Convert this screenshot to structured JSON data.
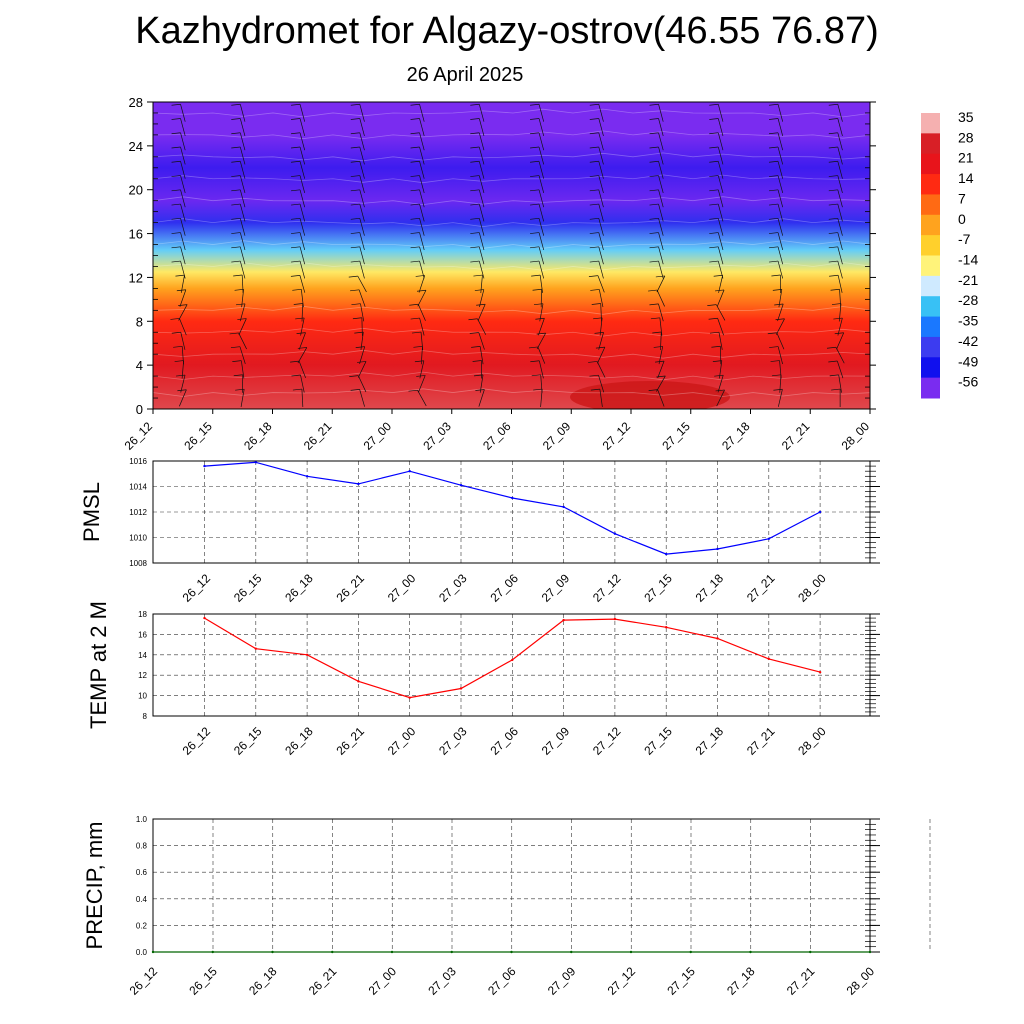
{
  "header": {
    "title": "Kazhydromet for Algazy-ostrov(46.55 76.87)",
    "subtitle": "26 April 2025"
  },
  "chart_data": [
    {
      "type": "heatmap",
      "title": "",
      "xlabel": "",
      "ylabel": "",
      "x_ticks": [
        "26_12",
        "26_15",
        "26_18",
        "26_21",
        "27_00",
        "27_03",
        "27_06",
        "27_09",
        "27_12",
        "27_15",
        "27_18",
        "27_21",
        "28_00"
      ],
      "y_ticks": [
        0,
        4,
        8,
        12,
        16,
        20,
        24,
        28
      ],
      "ylim": [
        0,
        28
      ],
      "colorbar_labels": [
        "35",
        "28",
        "21",
        "14",
        "7",
        "0",
        "-7",
        "-14",
        "-21",
        "-28",
        "-35",
        "-42",
        "-49",
        "-56"
      ],
      "colorbar_colors": [
        "#f5b0b0",
        "#d81f26",
        "#e8141b",
        "#ff2a12",
        "#ff6a14",
        "#ffa31e",
        "#ffd02c",
        "#fff37a",
        "#cfeaff",
        "#38c1f5",
        "#1a78ff",
        "#3c3cf0",
        "#1010ee",
        "#7a2cf0"
      ],
      "temperature_profile": [
        {
          "level": 0,
          "value": 30
        },
        {
          "level": 4,
          "value": 24
        },
        {
          "level": 8,
          "value": 14
        },
        {
          "level": 11,
          "value": 0
        },
        {
          "level": 12.5,
          "value": -12
        },
        {
          "level": 14.5,
          "value": -26
        },
        {
          "level": 17,
          "value": -44
        },
        {
          "level": 19,
          "value": -55
        },
        {
          "level": 22,
          "value": -52
        },
        {
          "level": 25,
          "value": -60
        },
        {
          "level": 28,
          "value": -62
        }
      ],
      "wind_barbs": true,
      "grid": false
    },
    {
      "type": "line",
      "ylabel": "PMSL",
      "x": [
        "26_12",
        "26_15",
        "26_18",
        "26_21",
        "27_00",
        "27_03",
        "27_06",
        "27_09",
        "27_12",
        "27_15",
        "27_18",
        "27_21",
        "28_00"
      ],
      "series": [
        {
          "values": [
            1015.6,
            1015.9,
            1014.8,
            1014.2,
            1015.2,
            1014.1,
            1013.1,
            1012.4,
            1010.3,
            1008.7,
            1009.1,
            1009.9,
            1012.0
          ],
          "color": "#0000ff"
        }
      ],
      "y_ticks": [
        "1008",
        "1010",
        "1012",
        "1014",
        "1016"
      ],
      "ylim": [
        1008,
        1016
      ],
      "grid": true
    },
    {
      "type": "line",
      "ylabel": "TEMP at 2 M",
      "x": [
        "26_12",
        "26_15",
        "26_18",
        "26_21",
        "27_00",
        "27_03",
        "27_06",
        "27_09",
        "27_12",
        "27_15",
        "27_18",
        "27_21",
        "28_00"
      ],
      "series": [
        {
          "values": [
            17.6,
            14.6,
            14.0,
            11.4,
            9.8,
            10.7,
            13.5,
            17.4,
            17.5,
            16.7,
            15.6,
            13.6,
            12.3
          ],
          "color": "#ff0000"
        }
      ],
      "y_ticks": [
        "8",
        "10",
        "12",
        "14",
        "16",
        "18"
      ],
      "ylim": [
        8,
        18
      ],
      "grid": true
    },
    {
      "type": "line",
      "ylabel": "PRECIP, mm",
      "x": [
        "26_12",
        "26_15",
        "26_18",
        "26_21",
        "27_00",
        "27_03",
        "27_06",
        "27_09",
        "27_12",
        "27_15",
        "27_18",
        "27_21",
        "28_00"
      ],
      "series": [
        {
          "values": [
            0,
            0,
            0,
            0,
            0,
            0,
            0,
            0,
            0,
            0,
            0,
            0,
            0
          ],
          "color": "#006400"
        }
      ],
      "y_ticks": [
        "0.0",
        "0.2",
        "0.4",
        "0.6",
        "0.8",
        "1.0"
      ],
      "ylim": [
        0,
        1
      ],
      "grid": true
    }
  ]
}
